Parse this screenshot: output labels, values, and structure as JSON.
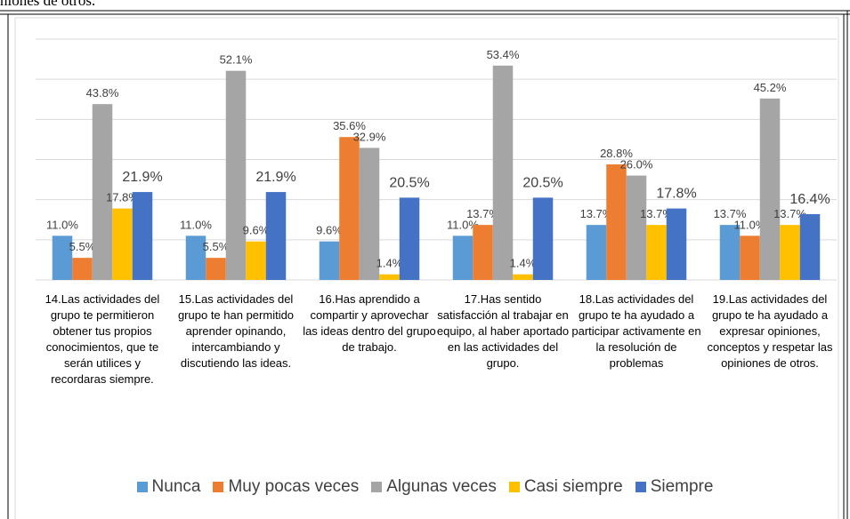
{
  "doc_text": "niones de otros.",
  "chart_data": {
    "type": "bar",
    "categories": [
      "14.Las actividades del grupo te permitieron obtener tus propios conocimientos, que te serán utilices y recordaras siempre.",
      "15.Las actividades del grupo te han permitido aprender opinando, intercambiando y discutiendo las ideas.",
      "16.Has aprendido a compartir y aprovechar las ideas dentro del grupo de trabajo.",
      "17.Has sentido satisfacción al trabajar en equipo, al haber aportado en las actividades del grupo.",
      "18.Las actividades del grupo te ha ayudado a participar activamente en la resolución de problemas",
      "19.Las actividades del grupo te ha ayudado a expresar opiniones, conceptos y respetar las opiniones de otros."
    ],
    "series": [
      {
        "name": "Nunca",
        "color": "#5b9bd5",
        "values": [
          11.0,
          11.0,
          9.6,
          11.0,
          13.7,
          13.7
        ],
        "value_labels": [
          "11.0%",
          "11.0%",
          "9.6%",
          "11.0%",
          "13.7%",
          "13.7%"
        ]
      },
      {
        "name": "Muy pocas veces",
        "color": "#ed7d31",
        "values": [
          5.5,
          5.5,
          35.6,
          13.7,
          28.8,
          11.0
        ],
        "value_labels": [
          "5.5%",
          "5.5%",
          "35.6%",
          "13.7%",
          "28.8%",
          "11.0%"
        ]
      },
      {
        "name": "Algunas veces",
        "color": "#a5a5a5",
        "values": [
          43.8,
          52.1,
          32.9,
          53.4,
          26.0,
          45.2
        ],
        "value_labels": [
          "43.8%",
          "52.1%",
          "32.9%",
          "53.4%",
          "26.0%",
          "45.2%"
        ]
      },
      {
        "name": "Casi siempre",
        "color": "#ffc000",
        "values": [
          17.8,
          9.6,
          1.4,
          1.4,
          13.7,
          13.7
        ],
        "value_labels": [
          "17.8%",
          "9.6%",
          "1.4%",
          "1.4%",
          "13.7%",
          "13.7%"
        ]
      },
      {
        "name": "Siempre",
        "color": "#4472c4",
        "values": [
          21.9,
          21.9,
          20.5,
          20.5,
          17.8,
          16.4
        ],
        "value_labels": [
          "21.9%",
          "21.9%",
          "20.5%",
          "20.5%",
          "17.8%",
          "16.4%"
        ]
      }
    ],
    "ylim": [
      0,
      60
    ],
    "yticks": [
      0,
      10,
      20,
      30,
      40,
      50,
      60
    ],
    "grid": true,
    "legend": "bottom"
  }
}
